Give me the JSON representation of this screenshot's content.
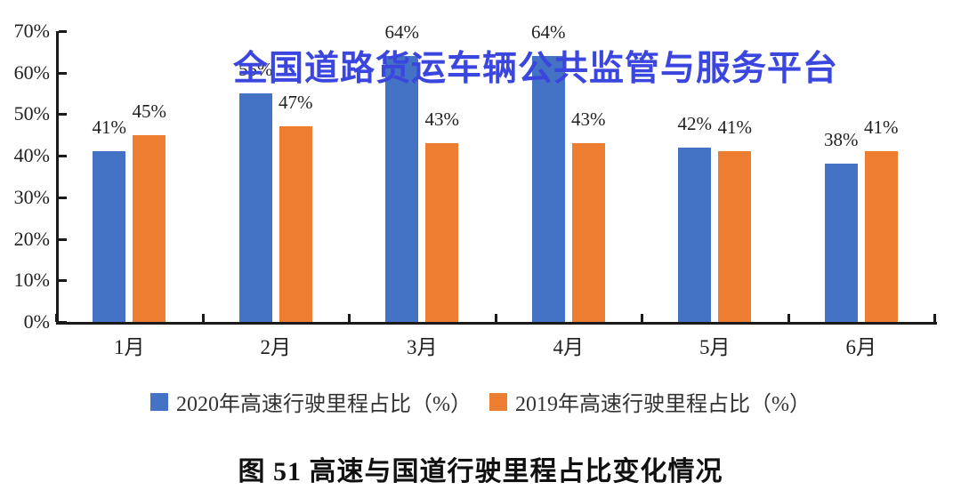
{
  "watermark": {
    "text": "全国道路货运车辆公共监管与服务平台",
    "color": "#3a46dd"
  },
  "caption": "图 51 高速与国道行驶里程占比变化情况",
  "chart_data": {
    "type": "bar",
    "title": "",
    "categories": [
      "1月",
      "2月",
      "3月",
      "4月",
      "5月",
      "6月"
    ],
    "series": [
      {
        "name": "2020年高速行驶里程占比（%）",
        "color": "#4472c4",
        "values": [
          41,
          55,
          64,
          64,
          42,
          38
        ]
      },
      {
        "name": "2019年高速行驶里程占比（%）",
        "color": "#ed7d31",
        "values": [
          45,
          47,
          43,
          43,
          41,
          41
        ]
      }
    ],
    "data_label_suffix": "%",
    "xlabel": "",
    "ylabel": "",
    "ylim": [
      0,
      70
    ],
    "ytick_step": 10,
    "ytick_labels": [
      "0%",
      "10%",
      "20%",
      "30%",
      "40%",
      "50%",
      "60%",
      "70%"
    ],
    "grid": false,
    "legend_position": "bottom",
    "axis_color": "#1a1a1a"
  }
}
